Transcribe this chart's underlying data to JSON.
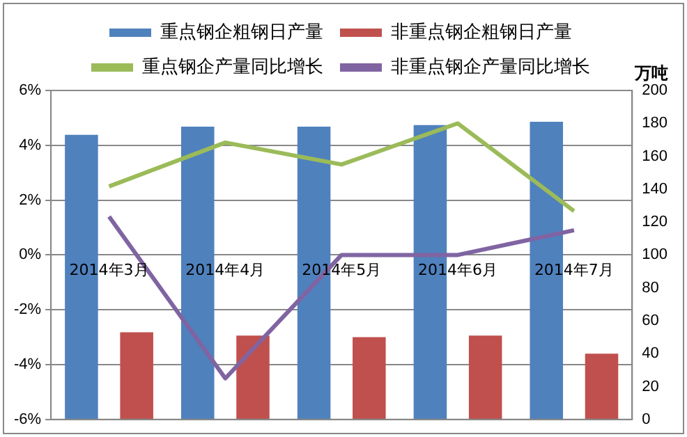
{
  "chart_data": {
    "type": "bar",
    "categories": [
      "2014年3月",
      "2014年4月",
      "2014年5月",
      "2014年6月",
      "2014年7月"
    ],
    "series": [
      {
        "name": "重点钢企粗钢日产量",
        "color": "#4f81bd",
        "axis": "y2",
        "values": [
          173,
          178,
          178,
          179,
          181
        ]
      },
      {
        "name": "非重点钢企粗钢日产量",
        "color": "#c0504d",
        "axis": "y2",
        "values": [
          53,
          51,
          50,
          51,
          40
        ]
      },
      {
        "name": "重点钢企产量同比增长",
        "type": "line",
        "color": "#9bbb59",
        "axis": "y",
        "values": [
          2.5,
          4.1,
          3.3,
          4.8,
          1.6
        ]
      },
      {
        "name": "非重点钢企产量同比增长",
        "type": "line",
        "color": "#8064a2",
        "axis": "y",
        "values": [
          1.4,
          -4.5,
          0,
          0,
          0.9
        ]
      }
    ],
    "y2label": "万吨",
    "ylim": [
      -6,
      6
    ],
    "yticks": [
      {
        "value": -6,
        "label": "-6%"
      },
      {
        "value": -4,
        "label": "-4%"
      },
      {
        "value": -2,
        "label": "-2%"
      },
      {
        "value": 0,
        "label": "0%"
      },
      {
        "value": 2,
        "label": "2%"
      },
      {
        "value": 4,
        "label": "4%"
      },
      {
        "value": 6,
        "label": "6%"
      }
    ],
    "y2lim": [
      0,
      200
    ],
    "y2ticks": [
      0,
      20,
      40,
      60,
      80,
      100,
      120,
      140,
      160,
      180,
      200
    ],
    "grid": "y",
    "legend": "top",
    "marker": "none"
  }
}
